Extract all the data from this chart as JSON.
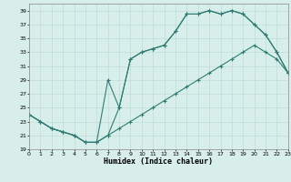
{
  "xlabel": "Humidex (Indice chaleur)",
  "line_color": "#2e7d74",
  "bg_color": "#d8eeeb",
  "grid_color": "#b8d8d4",
  "xlim": [
    0,
    23
  ],
  "ylim": [
    19,
    40
  ],
  "yticks": [
    19,
    21,
    23,
    25,
    27,
    29,
    31,
    33,
    35,
    37,
    39
  ],
  "xticks": [
    0,
    1,
    2,
    3,
    4,
    5,
    6,
    7,
    8,
    9,
    10,
    11,
    12,
    13,
    14,
    15,
    16,
    17,
    18,
    19,
    20,
    21,
    22,
    23
  ],
  "series1_x": [
    0,
    1,
    2,
    3,
    4,
    5,
    6,
    7,
    8,
    9,
    10,
    11,
    12,
    13,
    14,
    15,
    16,
    17,
    18,
    19,
    20,
    21,
    22,
    23
  ],
  "series1_y": [
    24,
    23,
    22,
    21.5,
    21,
    20,
    20,
    21,
    25,
    32,
    33,
    33.5,
    34,
    36,
    38.5,
    38.5,
    39,
    38.5,
    39,
    38.5,
    37,
    35.5,
    33,
    30
  ],
  "series2_x": [
    0,
    1,
    2,
    3,
    4,
    5,
    6,
    7,
    8,
    9,
    10,
    11,
    12,
    13,
    14,
    15,
    16,
    17,
    18,
    19,
    20,
    21,
    22,
    23
  ],
  "series2_y": [
    24,
    23,
    22,
    21.5,
    21,
    20,
    20,
    29,
    25,
    32,
    33,
    33.5,
    34,
    36,
    38.5,
    38.5,
    39,
    38.5,
    39,
    38.5,
    37,
    35.5,
    33,
    30
  ],
  "series3_x": [
    0,
    1,
    2,
    3,
    4,
    5,
    6,
    7,
    8,
    9,
    10,
    11,
    12,
    13,
    14,
    15,
    16,
    17,
    18,
    19,
    20,
    21,
    22,
    23
  ],
  "series3_y": [
    24,
    23,
    22,
    21.5,
    21,
    20,
    20,
    21,
    22,
    23,
    24,
    25,
    26,
    27,
    28,
    29,
    30,
    31,
    32,
    33,
    34,
    33,
    32,
    30
  ]
}
